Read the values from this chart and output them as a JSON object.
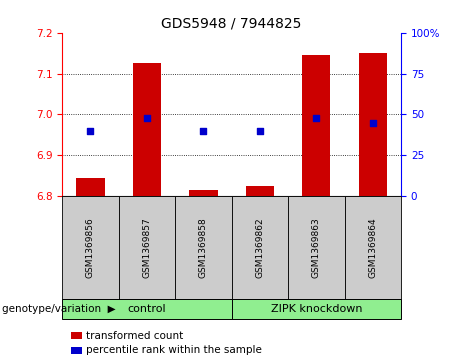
{
  "title": "GDS5948 / 7944825",
  "samples": [
    "GSM1369856",
    "GSM1369857",
    "GSM1369858",
    "GSM1369862",
    "GSM1369863",
    "GSM1369864"
  ],
  "bar_values": [
    6.845,
    7.125,
    6.815,
    6.825,
    7.145,
    7.15
  ],
  "bar_base": 6.8,
  "percentile_values": [
    40,
    48,
    40,
    40,
    48,
    45
  ],
  "ylim_left": [
    6.8,
    7.2
  ],
  "ylim_right": [
    0,
    100
  ],
  "yticks_left": [
    6.8,
    6.9,
    7.0,
    7.1,
    7.2
  ],
  "yticks_right": [
    0,
    25,
    50,
    75,
    100
  ],
  "bar_color": "#cc0000",
  "dot_color": "#0000cc",
  "group_box_color": "#cccccc",
  "group_color": "#90EE90",
  "legend_label_bar": "transformed count",
  "legend_label_dot": "percentile rank within the sample",
  "genotype_label": "genotype/variation",
  "control_label": "control",
  "zipk_label": "ZIPK knockdown",
  "title_fontsize": 10,
  "tick_fontsize": 7.5,
  "sample_fontsize": 6.5,
  "group_fontsize": 8,
  "legend_fontsize": 7.5
}
